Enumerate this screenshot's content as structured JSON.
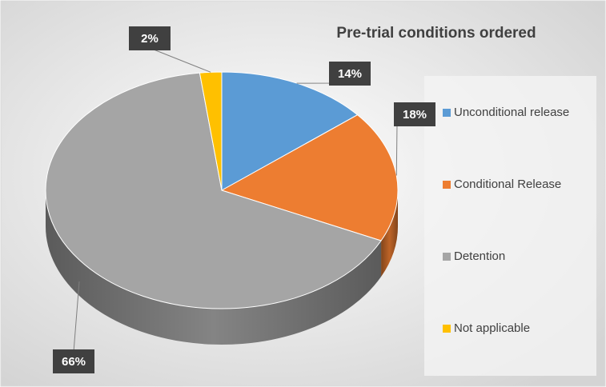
{
  "chart_data": {
    "type": "pie",
    "title": "Pre-trial conditions ordered",
    "categories": [
      "Unconditional release",
      "Conditional Release",
      "Detention",
      "Not applicable"
    ],
    "values": [
      14,
      18,
      66,
      2
    ],
    "value_labels": [
      "14%",
      "18%",
      "66%",
      "2%"
    ],
    "colors": [
      "#5b9bd5",
      "#ed7d31",
      "#a5a5a5",
      "#ffc000"
    ],
    "legend": "right"
  }
}
